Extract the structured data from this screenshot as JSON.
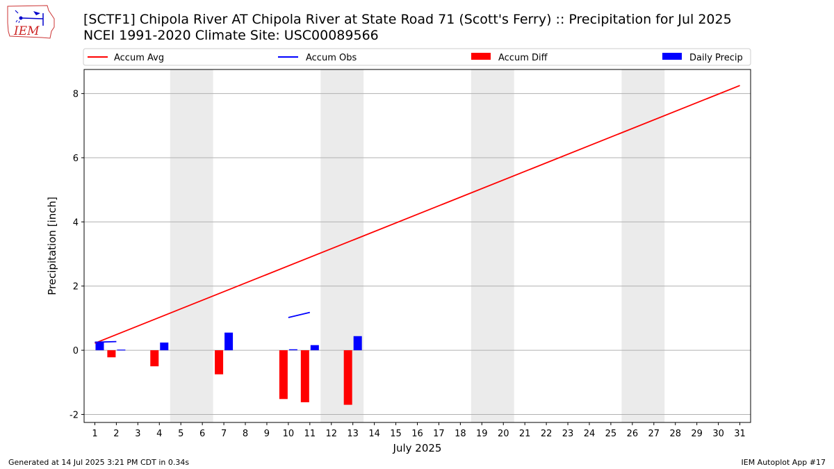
{
  "header": {
    "title": "[SCTF1] Chipola River  AT Chipola River at State Road 71 (Scott's Ferry) :: Precipitation for Jul 2025",
    "subtitle": "NCEI 1991-2020 Climate Site: USC00089566",
    "logo_text": "IEM"
  },
  "footer": {
    "left": "Generated at 14 Jul 2025 3:21 PM CDT in 0.34s",
    "right": "IEM Autoplot App #17"
  },
  "chart_data": {
    "type": "bar",
    "xlabel": "July 2025",
    "ylabel": "Precipitation [inch]",
    "xlim": [
      0.5,
      31.5
    ],
    "ylim": [
      -2.25,
      8.75
    ],
    "yticks": [
      -2,
      0,
      2,
      4,
      6,
      8
    ],
    "x": [
      1,
      2,
      3,
      4,
      5,
      6,
      7,
      8,
      9,
      10,
      11,
      12,
      13,
      14,
      15,
      16,
      17,
      18,
      19,
      20,
      21,
      22,
      23,
      24,
      25,
      26,
      27,
      28,
      29,
      30,
      31
    ],
    "weekend_shading": [
      [
        5,
        6
      ],
      [
        12,
        13
      ],
      [
        19,
        20
      ],
      [
        26,
        27
      ]
    ],
    "grid": "horizontal",
    "legend_position": "top",
    "legend": [
      "Accum Avg",
      "Accum Obs",
      "Accum Diff",
      "Daily Precip"
    ],
    "colors": {
      "accum_avg": "#ff0000",
      "accum_obs": "#0000ff",
      "accum_diff": "#ff0000",
      "daily_precip": "#0000ff",
      "shade": "#ebebeb",
      "grid": "#b0b0b0"
    },
    "series": [
      {
        "name": "Accum Avg",
        "kind": "line",
        "x": [
          1,
          31
        ],
        "values": [
          0.22,
          8.25
        ]
      },
      {
        "name": "Accum Obs",
        "kind": "line",
        "segments": [
          {
            "x": [
              1,
              2
            ],
            "values": [
              0.25,
              0.27
            ]
          },
          {
            "x": [
              10,
              11
            ],
            "values": [
              1.02,
              1.18
            ]
          }
        ]
      },
      {
        "name": "Accum Diff",
        "kind": "bar",
        "x": [
          2,
          4,
          7,
          10,
          11,
          13
        ],
        "values": [
          -0.22,
          -0.5,
          -0.75,
          -1.52,
          -1.62,
          -1.7
        ]
      },
      {
        "name": "Daily Precip",
        "kind": "bar",
        "x": [
          1,
          2,
          4,
          7,
          10,
          11,
          13
        ],
        "values": [
          0.27,
          0.02,
          0.24,
          0.55,
          0.03,
          0.16,
          0.44
        ]
      }
    ]
  }
}
